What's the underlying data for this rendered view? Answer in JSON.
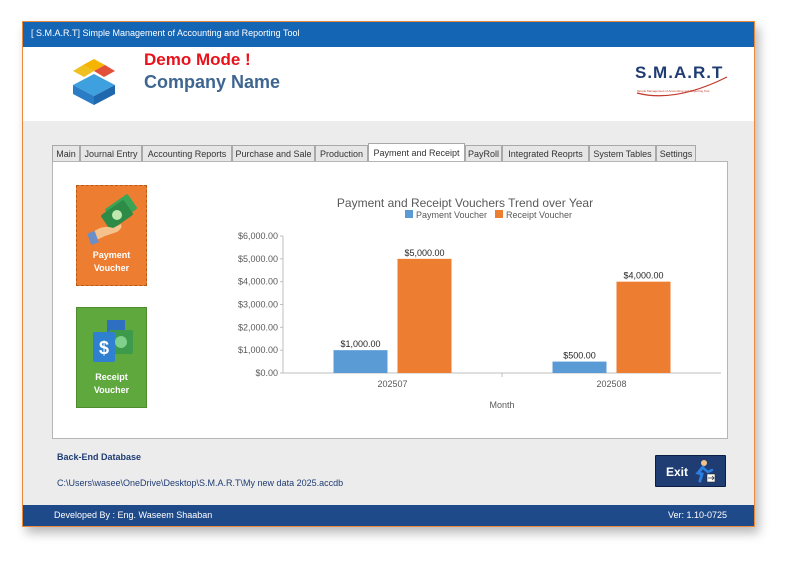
{
  "window": {
    "title": "[ S.M.A.R.T] Simple Management of Accounting and Reporting Tool"
  },
  "header": {
    "demo_label": "Demo Mode !",
    "company_label": "Company Name",
    "brand_name": "S.M.A.R.T",
    "brand_tagline": "Simple Management of Accounting and Reporting Tool"
  },
  "tabs": [
    {
      "label": "Main"
    },
    {
      "label": "Journal Entry"
    },
    {
      "label": "Accounting Reports"
    },
    {
      "label": "Purchase and Sale"
    },
    {
      "label": "Production"
    },
    {
      "label": "Payment and Receipt",
      "active": true
    },
    {
      "label": "PayRoll"
    },
    {
      "label": "Integrated Reoprts"
    },
    {
      "label": "System Tables"
    },
    {
      "label": "Settings"
    }
  ],
  "buttons": {
    "payment_label_1": "Payment",
    "payment_label_2": "Voucher",
    "receipt_label_1": "Receipt",
    "receipt_label_2": "Voucher",
    "exit_label": "Exit",
    "payment_color": "#ed7d31",
    "receipt_color": "#5fa83d"
  },
  "database": {
    "title": "Back-End Database",
    "path": "C:\\Users\\wasee\\OneDrive\\Desktop\\S.M.A.R.T\\My new data 2025.accdb"
  },
  "footer": {
    "developer": "Developed By : Eng. Waseem Shaaban",
    "version": "Ver: 1.10-0725"
  },
  "chart_data": {
    "type": "bar",
    "title": "Payment and Receipt Vouchers Trend over Year",
    "xlabel": "Month",
    "ylabel": "",
    "categories": [
      "202507",
      "202508"
    ],
    "series": [
      {
        "name": "Payment Voucher",
        "values": [
          1000,
          500
        ],
        "labels": [
          "$1,000.00",
          "$500.00"
        ],
        "color": "#5b9bd5"
      },
      {
        "name": "Receipt Voucher",
        "values": [
          5000,
          4000
        ],
        "labels": [
          "$5,000.00",
          "$4,000.00"
        ],
        "color": "#ed7d31"
      }
    ],
    "ylim": [
      0,
      6000
    ],
    "yticks": [
      "$0.00",
      "$1,000.00",
      "$2,000.00",
      "$3,000.00",
      "$4,000.00",
      "$5,000.00",
      "$6,000.00"
    ],
    "legend": "top-center",
    "grid": false
  }
}
